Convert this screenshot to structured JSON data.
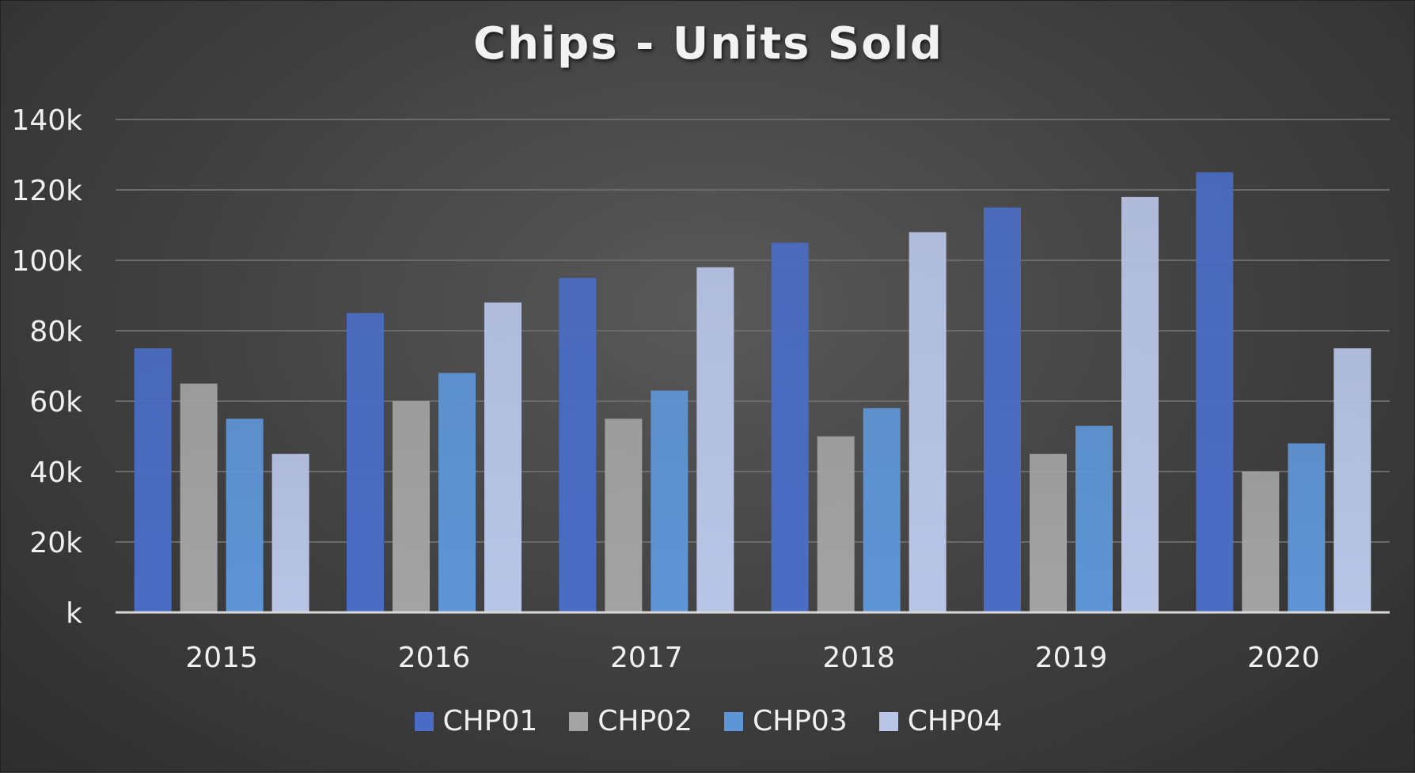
{
  "chart_data": {
    "type": "bar",
    "title": "Chips - Units Sold",
    "categories": [
      "2015",
      "2016",
      "2017",
      "2018",
      "2019",
      "2020"
    ],
    "series": [
      {
        "name": "CHP01",
        "color": "#4a6cc4",
        "values": [
          75000,
          85000,
          95000,
          105000,
          115000,
          125000
        ]
      },
      {
        "name": "CHP02",
        "color": "#a3a3a3",
        "values": [
          65000,
          60000,
          55000,
          50000,
          45000,
          40000
        ]
      },
      {
        "name": "CHP03",
        "color": "#5e95d6",
        "values": [
          55000,
          68000,
          63000,
          58000,
          53000,
          48000
        ]
      },
      {
        "name": "CHP04",
        "color": "#b8c5e6",
        "values": [
          45000,
          88000,
          98000,
          108000,
          118000,
          75000
        ]
      }
    ],
    "y_ticks": [
      0,
      20000,
      40000,
      60000,
      80000,
      100000,
      120000,
      140000
    ],
    "y_tick_labels": [
      "k",
      "20k",
      "40k",
      "60k",
      "80k",
      "100k",
      "120k",
      "140k"
    ],
    "ylim": [
      0,
      140000
    ],
    "grid": true,
    "legend_position": "bottom"
  }
}
